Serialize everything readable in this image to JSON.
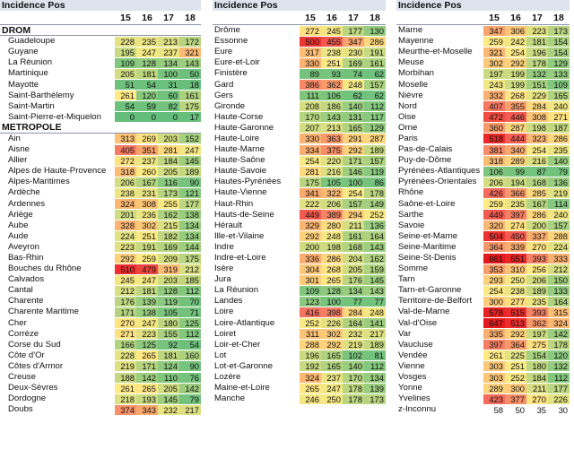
{
  "header_title": "Incidence Pos",
  "years": [
    "15",
    "16",
    "17",
    "18"
  ],
  "columns": [
    {
      "rows": [
        {
          "type": "section",
          "name": "DROM"
        },
        {
          "name": "Guadeloupe",
          "v": [
            228,
            235,
            213,
            172
          ]
        },
        {
          "name": "Guyane",
          "v": [
            195,
            247,
            237,
            321
          ]
        },
        {
          "name": "La Réunion",
          "v": [
            109,
            128,
            134,
            143
          ]
        },
        {
          "name": "Martinique",
          "v": [
            205,
            181,
            100,
            50
          ]
        },
        {
          "name": "Mayotte",
          "v": [
            51,
            54,
            31,
            18
          ]
        },
        {
          "name": "Saint-Barthélemy",
          "v": [
            261,
            120,
            60,
            161
          ]
        },
        {
          "name": "Saint-Martin",
          "v": [
            54,
            59,
            82,
            175
          ]
        },
        {
          "name": "Saint-Pierre-et-Miquelon",
          "v": [
            0,
            0,
            0,
            17
          ]
        },
        {
          "type": "section",
          "name": "METROPOLE"
        },
        {
          "name": "Ain",
          "v": [
            313,
            269,
            203,
            152
          ]
        },
        {
          "name": "Aisne",
          "v": [
            405,
            351,
            281,
            247
          ]
        },
        {
          "name": "Allier",
          "v": [
            272,
            237,
            184,
            145
          ]
        },
        {
          "name": "Alpes de Haute-Provence",
          "v": [
            318,
            260,
            205,
            189
          ]
        },
        {
          "name": "Alpes-Maritimes",
          "v": [
            206,
            167,
            116,
            90
          ]
        },
        {
          "name": "Ardèche",
          "v": [
            238,
            231,
            173,
            121
          ]
        },
        {
          "name": "Ardennes",
          "v": [
            324,
            308,
            255,
            177
          ]
        },
        {
          "name": "Ariège",
          "v": [
            201,
            236,
            162,
            138
          ]
        },
        {
          "name": "Aube",
          "v": [
            328,
            302,
            215,
            134
          ]
        },
        {
          "name": "Aude",
          "v": [
            224,
            251,
            182,
            134
          ]
        },
        {
          "name": "Aveyron",
          "v": [
            223,
            191,
            169,
            144
          ]
        },
        {
          "name": "Bas-Rhin",
          "v": [
            292,
            259,
            209,
            175
          ]
        },
        {
          "name": "Bouches du Rhône",
          "v": [
            510,
            479,
            319,
            212
          ]
        },
        {
          "name": "Calvados",
          "v": [
            245,
            247,
            203,
            185
          ]
        },
        {
          "name": "Cantal",
          "v": [
            212,
            181,
            128,
            112
          ]
        },
        {
          "name": "Charente",
          "v": [
            176,
            139,
            119,
            70
          ]
        },
        {
          "name": "Charente Maritime",
          "v": [
            171,
            138,
            105,
            71
          ]
        },
        {
          "name": "Cher",
          "v": [
            270,
            247,
            180,
            125
          ]
        },
        {
          "name": "Corrèze",
          "v": [
            271,
            223,
            155,
            112
          ]
        },
        {
          "name": "Corse du Sud",
          "v": [
            166,
            125,
            92,
            54
          ]
        },
        {
          "name": "Côte d'Or",
          "v": [
            228,
            265,
            181,
            160
          ]
        },
        {
          "name": "Côtes d'Armor",
          "v": [
            219,
            171,
            124,
            90
          ]
        },
        {
          "name": "Creuse",
          "v": [
            188,
            142,
            110,
            76
          ]
        },
        {
          "name": "Deux-Sèvres",
          "v": [
            261,
            265,
            205,
            142
          ]
        },
        {
          "name": "Dordogne",
          "v": [
            218,
            193,
            145,
            79
          ]
        },
        {
          "name": "Doubs",
          "v": [
            374,
            343,
            232,
            217
          ]
        }
      ]
    },
    {
      "rows": [
        {
          "name": "Drôme",
          "v": [
            272,
            245,
            177,
            130
          ]
        },
        {
          "name": "Essonne",
          "v": [
            500,
            455,
            347,
            286
          ]
        },
        {
          "name": "Eure",
          "v": [
            317,
            238,
            230,
            191
          ]
        },
        {
          "name": "Eure-et-Loir",
          "v": [
            330,
            251,
            169,
            161
          ]
        },
        {
          "name": "Finistère",
          "v": [
            89,
            93,
            74,
            62
          ]
        },
        {
          "name": "Gard",
          "v": [
            386,
            362,
            248,
            157
          ]
        },
        {
          "name": "Gers",
          "v": [
            111,
            106,
            62,
            62
          ]
        },
        {
          "name": "Gironde",
          "v": [
            208,
            186,
            140,
            112
          ]
        },
        {
          "name": "Haute-Corse",
          "v": [
            170,
            143,
            131,
            117
          ]
        },
        {
          "name": "Haute-Garonne",
          "v": [
            207,
            213,
            165,
            129
          ]
        },
        {
          "name": "Haute-Loire",
          "v": [
            330,
            363,
            291,
            287
          ]
        },
        {
          "name": "Haute-Marne",
          "v": [
            334,
            375,
            292,
            189
          ]
        },
        {
          "name": "Haute-Saône",
          "v": [
            254,
            220,
            171,
            157
          ]
        },
        {
          "name": "Haute-Savoie",
          "v": [
            281,
            216,
            146,
            119
          ]
        },
        {
          "name": "Hautes-Pyrénées",
          "v": [
            175,
            105,
            100,
            86
          ]
        },
        {
          "name": "Haute-Vienne",
          "v": [
            341,
            322,
            254,
            178
          ]
        },
        {
          "name": "Haut-Rhin",
          "v": [
            222,
            206,
            157,
            149
          ]
        },
        {
          "name": "Hauts-de-Seine",
          "v": [
            449,
            389,
            294,
            252
          ]
        },
        {
          "name": "Hérault",
          "v": [
            329,
            280,
            211,
            136
          ]
        },
        {
          "name": "Ille-et-Vilaine",
          "v": [
            292,
            248,
            161,
            164
          ]
        },
        {
          "name": "Indre",
          "v": [
            200,
            198,
            168,
            143
          ]
        },
        {
          "name": "Indre-et-Loire",
          "v": [
            336,
            286,
            204,
            162
          ]
        },
        {
          "name": "Isère",
          "v": [
            304,
            268,
            205,
            159
          ]
        },
        {
          "name": "Jura",
          "v": [
            301,
            265,
            176,
            145
          ]
        },
        {
          "name": "La Réunion",
          "v": [
            109,
            128,
            134,
            143
          ]
        },
        {
          "name": "Landes",
          "v": [
            123,
            100,
            77,
            77
          ]
        },
        {
          "name": "Loire",
          "v": [
            416,
            398,
            284,
            248
          ]
        },
        {
          "name": "Loire-Atlantique",
          "v": [
            252,
            226,
            164,
            141
          ]
        },
        {
          "name": "Loiret",
          "v": [
            311,
            302,
            232,
            217
          ]
        },
        {
          "name": "Loir-et-Cher",
          "v": [
            288,
            292,
            219,
            189
          ]
        },
        {
          "name": "Lot",
          "v": [
            196,
            165,
            102,
            81
          ]
        },
        {
          "name": "Lot-et-Garonne",
          "v": [
            192,
            165,
            140,
            112
          ]
        },
        {
          "name": "Lozère",
          "v": [
            324,
            237,
            170,
            134
          ]
        },
        {
          "name": "Maine-et-Loire",
          "v": [
            265,
            247,
            178,
            139
          ]
        },
        {
          "name": "Manche",
          "v": [
            246,
            250,
            178,
            173
          ]
        }
      ]
    },
    {
      "rows": [
        {
          "name": "Marne",
          "v": [
            347,
            306,
            223,
            173
          ]
        },
        {
          "name": "Mayenne",
          "v": [
            259,
            242,
            181,
            154
          ]
        },
        {
          "name": "Meurthe-et-Moselle",
          "v": [
            321,
            254,
            196,
            154
          ]
        },
        {
          "name": "Meuse",
          "v": [
            302,
            292,
            178,
            129
          ]
        },
        {
          "name": "Morbihan",
          "v": [
            197,
            199,
            132,
            133
          ]
        },
        {
          "name": "Moselle",
          "v": [
            243,
            199,
            151,
            109
          ]
        },
        {
          "name": "Nièvre",
          "v": [
            332,
            268,
            229,
            165
          ]
        },
        {
          "name": "Nord",
          "v": [
            407,
            355,
            284,
            240
          ]
        },
        {
          "name": "Oise",
          "v": [
            472,
            446,
            308,
            271
          ]
        },
        {
          "name": "Orne",
          "v": [
            360,
            287,
            198,
            187
          ]
        },
        {
          "name": "Paris",
          "v": [
            518,
            444,
            323,
            286
          ]
        },
        {
          "name": "Pas-de-Calais",
          "v": [
            381,
            340,
            254,
            235
          ]
        },
        {
          "name": "Puy-de-Dôme",
          "v": [
            318,
            289,
            216,
            140
          ]
        },
        {
          "name": "Pyrénées-Atlantiques",
          "v": [
            106,
            99,
            87,
            79
          ]
        },
        {
          "name": "Pyrénées-Orientales",
          "v": [
            206,
            194,
            168,
            136
          ]
        },
        {
          "name": "Rhône",
          "v": [
            426,
            366,
            285,
            219
          ]
        },
        {
          "name": "Saône-et-Loire",
          "v": [
            259,
            235,
            167,
            114
          ]
        },
        {
          "name": "Sarthe",
          "v": [
            449,
            397,
            286,
            240
          ]
        },
        {
          "name": "Savoie",
          "v": [
            320,
            274,
            200,
            157
          ]
        },
        {
          "name": "Seine-et-Marne",
          "v": [
            504,
            450,
            337,
            288
          ]
        },
        {
          "name": "Seine-Maritime",
          "v": [
            364,
            339,
            270,
            224
          ]
        },
        {
          "name": "Seine-St-Denis",
          "v": [
            661,
            551,
            393,
            333
          ]
        },
        {
          "name": "Somme",
          "v": [
            353,
            310,
            256,
            212
          ]
        },
        {
          "name": "Tarn",
          "v": [
            293,
            250,
            206,
            150
          ]
        },
        {
          "name": "Tarn-et-Garonne",
          "v": [
            254,
            238,
            189,
            133
          ]
        },
        {
          "name": "Territoire-de-Belfort",
          "v": [
            300,
            277,
            235,
            164
          ]
        },
        {
          "name": "Val-de-Marne",
          "v": [
            578,
            515,
            393,
            315
          ]
        },
        {
          "name": "Val-d'Oise",
          "v": [
            647,
            513,
            362,
            324
          ]
        },
        {
          "name": "Var",
          "v": [
            335,
            292,
            197,
            142
          ]
        },
        {
          "name": "Vaucluse",
          "v": [
            397,
            364,
            275,
            178
          ]
        },
        {
          "name": "Vendée",
          "v": [
            261,
            225,
            154,
            120
          ]
        },
        {
          "name": "Vienne",
          "v": [
            303,
            251,
            180,
            132
          ]
        },
        {
          "name": "Vosges",
          "v": [
            303,
            252,
            184,
            112
          ]
        },
        {
          "name": "Yonne",
          "v": [
            289,
            300,
            211,
            177
          ]
        },
        {
          "name": "Yvelines",
          "v": [
            423,
            377,
            270,
            226
          ]
        },
        {
          "name": "z-Inconnu",
          "v": [
            58,
            50,
            35,
            30
          ],
          "plain": true
        }
      ]
    }
  ]
}
